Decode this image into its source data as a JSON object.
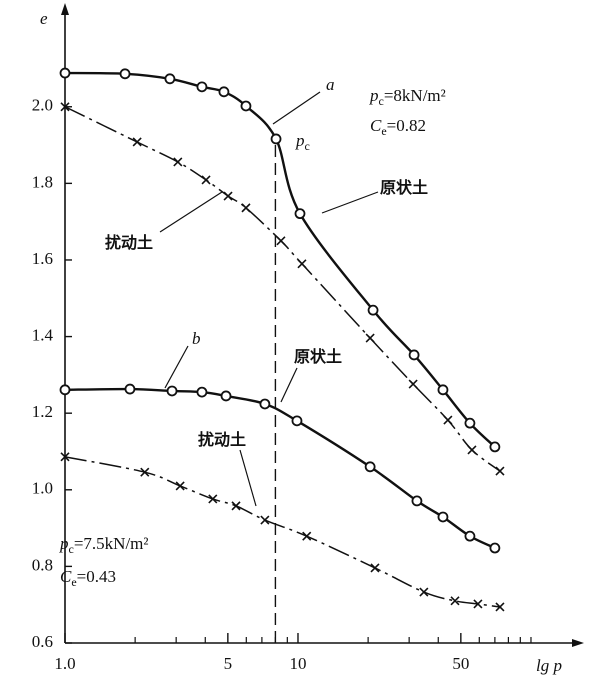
{
  "chart_data": {
    "type": "line",
    "xscale": "log",
    "xlabel": "lg p",
    "ylabel": "e",
    "xlim": [
      1,
      150
    ],
    "ylim": [
      0.6,
      2.25
    ],
    "xticks": [
      {
        "value": 1,
        "label": "1.0"
      },
      5,
      10,
      50
    ],
    "xminor_ticks": [
      2,
      3,
      4,
      6,
      7,
      8,
      9,
      20,
      30,
      40,
      60,
      70,
      80,
      90,
      100
    ],
    "yticks": [
      0.6,
      0.8,
      {
        "value": 1,
        "label": "1.0"
      },
      1.2,
      1.4,
      1.6,
      1.8,
      {
        "value": 2,
        "label": "2.0"
      }
    ],
    "vlines": [
      {
        "x": 8,
        "ymax": 1.916,
        "style": "dashed"
      }
    ],
    "series": [
      {
        "color": "#111111",
        "marker": "circle",
        "linestyle": "solid",
        "x": [
          1.0,
          1.81,
          2.82,
          3.87,
          4.81,
          5.98,
          8.05,
          10.2,
          21.0,
          31.5,
          41.9,
          54.7,
          70.0
        ],
        "values": [
          2.088,
          2.086,
          2.073,
          2.052,
          2.039,
          2.002,
          1.916,
          1.721,
          1.469,
          1.352,
          1.261,
          1.174,
          1.112
        ]
      },
      {
        "color": "#111111",
        "marker": "cross",
        "linestyle": "dashdot",
        "x": [
          1.0,
          2.04,
          3.05,
          4.03,
          5.01,
          5.98,
          8.45,
          10.4,
          20.4,
          31.2,
          44.0,
          55.8,
          73.6
        ],
        "values": [
          2.0,
          1.908,
          1.856,
          1.809,
          1.767,
          1.736,
          1.65,
          1.59,
          1.396,
          1.276,
          1.182,
          1.104,
          1.049
        ]
      },
      {
        "color": "#111111",
        "marker": "circle",
        "linestyle": "solid",
        "x": [
          1.0,
          1.9,
          2.88,
          3.87,
          4.91,
          7.21,
          9.9,
          20.4,
          32.4,
          41.9,
          54.7,
          70.0
        ],
        "values": [
          1.261,
          1.263,
          1.258,
          1.255,
          1.245,
          1.224,
          1.18,
          1.06,
          0.971,
          0.929,
          0.879,
          0.848
        ]
      },
      {
        "color": "#111111",
        "marker": "cross",
        "linestyle": "dashdot",
        "x": [
          1.0,
          2.2,
          3.12,
          4.31,
          5.42,
          7.21,
          10.9,
          21.4,
          34.7,
          47.2,
          59.2,
          73.6
        ],
        "values": [
          1.086,
          1.046,
          1.01,
          0.976,
          0.958,
          0.921,
          0.879,
          0.796,
          0.733,
          0.71,
          0.702,
          0.694
        ]
      }
    ],
    "annotations": [
      {
        "text": "a",
        "italic": true
      },
      {
        "text": "p",
        "sub": "c",
        "italic": true
      },
      {
        "text": "p",
        "sub": "c",
        "rest": "=8kN/m²",
        "italic": true
      },
      {
        "text": "C",
        "sub": "e",
        "rest": "=0.82",
        "italic": true
      },
      {
        "text": "原状土"
      },
      {
        "text": "扰动土"
      },
      {
        "text": "b",
        "italic": true
      },
      {
        "text": "原状土"
      },
      {
        "text": "扰动土"
      },
      {
        "text": "p",
        "sub": "c",
        "rest": "=7.5kN/m²",
        "italic": true
      },
      {
        "text": "C",
        "sub": "e",
        "rest": "=0.43",
        "italic": true
      }
    ]
  }
}
